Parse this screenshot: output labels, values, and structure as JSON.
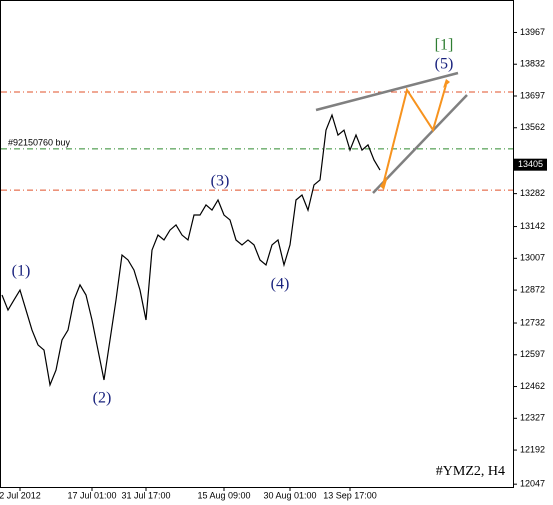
{
  "chart_data": {
    "type": "line",
    "title": "#YMZ2, H4",
    "series": [
      {
        "name": "#YMZ2",
        "color": "#000000",
        "values": [
          12851,
          12787,
          12830,
          12872,
          12787,
          12702,
          12639,
          12617,
          12469,
          12532,
          12660,
          12702,
          12830,
          12894,
          12851,
          12745,
          12617,
          12490,
          12660,
          12830,
          13021,
          13000,
          12957,
          12872,
          12745,
          13042,
          13106,
          13085,
          13127,
          13149,
          13106,
          13085,
          13191,
          13191,
          13234,
          13212,
          13255,
          13191,
          13170,
          13085,
          13064,
          13085,
          13064,
          13000,
          12979,
          13064,
          13085,
          12979,
          13064,
          13255,
          13276,
          13212,
          13319,
          13340,
          13552,
          13616,
          13531,
          13552,
          13467,
          13531,
          13467,
          13489,
          13425,
          13382
        ]
      }
    ],
    "xticks": [
      {
        "value": 3,
        "label": "2 Jul 2012"
      },
      {
        "value": 15,
        "label": "17 Jul 01:00"
      },
      {
        "value": 24,
        "label": "31 Jul 17:00"
      },
      {
        "value": 37,
        "label": "15 Aug 09:00"
      },
      {
        "value": 48,
        "label": "30 Aug 01:00"
      },
      {
        "value": 58,
        "label": "13 Sep 17:00"
      }
    ],
    "ylim": [
      12035,
      14105
    ],
    "yticks": [
      12047,
      12192,
      12327,
      12462,
      12597,
      12732,
      12872,
      13007,
      13142,
      13282,
      13562,
      13697,
      13832,
      13967
    ],
    "levels": [
      {
        "value": 13714,
        "color": "#e0502a"
      },
      {
        "value": 13472,
        "color": "#2e8b2e",
        "label": "#92150760 buy"
      },
      {
        "value": 13297,
        "color": "#e0502a"
      }
    ],
    "last_price": 13405,
    "annotations": [
      "(1)",
      "(2)",
      "(3)",
      "(4)",
      "(5)",
      "[1]"
    ]
  }
}
